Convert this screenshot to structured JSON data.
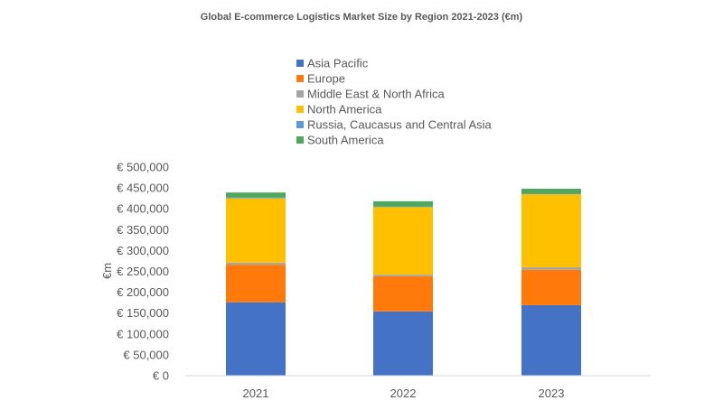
{
  "chart_data": {
    "type": "bar",
    "stacked": true,
    "title": "Global E-commerce Logistics Market Size by Region 2021-2023 (€m)",
    "xlabel": "",
    "ylabel": "€m",
    "ylim": [
      0,
      500000
    ],
    "yticks": [
      "€ 0",
      "€ 50,000",
      "€ 100,000",
      "€ 150,000",
      "€ 200,000",
      "€ 250,000",
      "€ 300,000",
      "€ 350,000",
      "€ 400,000",
      "€ 450,000",
      "€ 500,000"
    ],
    "categories": [
      "2021",
      "2022",
      "2023"
    ],
    "grid": false,
    "legend_position": "top",
    "series": [
      {
        "name": "Asia Pacific",
        "color": "#4472C4",
        "values": [
          176000,
          154000,
          169000
        ]
      },
      {
        "name": "Europe",
        "color": "#FF7A0A",
        "values": [
          90000,
          84000,
          85000
        ]
      },
      {
        "name": "Middle East & North Africa",
        "color": "#A5A5A5",
        "values": [
          5000,
          4000,
          6000
        ]
      },
      {
        "name": "North America",
        "color": "#FFC000",
        "values": [
          154000,
          162000,
          175000
        ]
      },
      {
        "name": "Russia, Caucasus and Central Asia",
        "color": "#5B9BD5",
        "values": [
          2000,
          1000,
          1000
        ]
      },
      {
        "name": "South America",
        "color": "#4CA85E",
        "values": [
          12000,
          13000,
          12000
        ]
      }
    ]
  }
}
